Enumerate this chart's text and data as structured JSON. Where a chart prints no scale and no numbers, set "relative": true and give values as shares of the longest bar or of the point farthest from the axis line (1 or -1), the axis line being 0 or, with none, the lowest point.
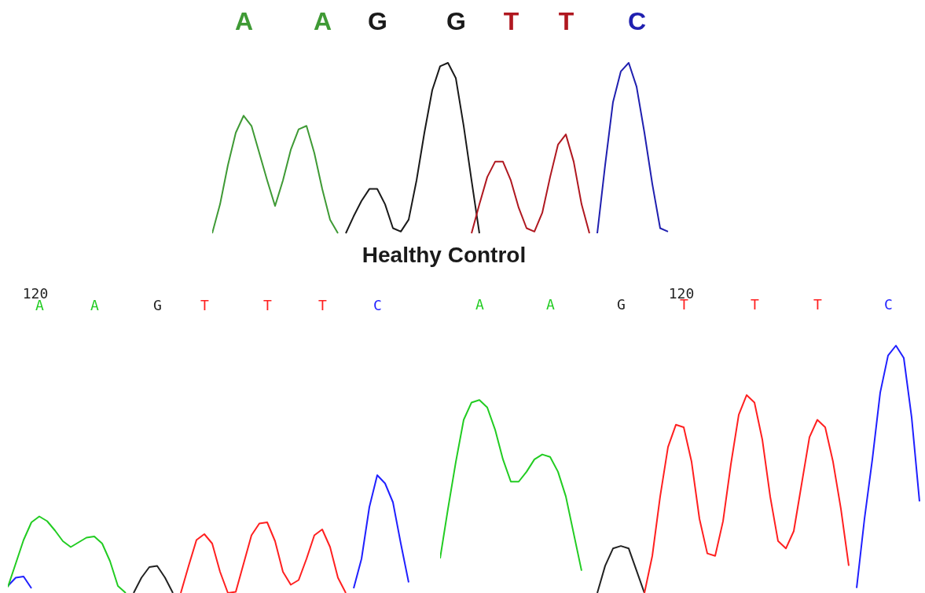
{
  "chart_data": [
    {
      "type": "line",
      "relative": true,
      "xlabel": "Healthy Control",
      "categories": [
        null,
        null,
        null,
        null,
        "A",
        null,
        null,
        null,
        null,
        null,
        null,
        null,
        null,
        null,
        "A",
        null,
        null,
        null,
        null,
        null,
        null,
        "G",
        null,
        null,
        null,
        null,
        null,
        null,
        null,
        null,
        null,
        "G",
        null,
        null,
        null,
        null,
        null,
        null,
        "T",
        null,
        null,
        null,
        null,
        null,
        null,
        "T",
        null,
        null,
        null,
        null,
        null,
        null,
        null,
        null,
        "C",
        null,
        null,
        null,
        null,
        null
      ],
      "series": [
        {
          "color": "#3f9a35",
          "values": [
            0,
            0.17,
            0.4,
            0.59,
            0.69,
            0.63,
            0.47,
            0.31,
            0.16,
            0.31,
            0.49,
            0.61,
            0.63,
            0.47,
            0.26,
            0.08,
            0,
            null,
            null,
            null,
            null,
            null,
            null,
            null,
            null,
            null,
            null,
            null,
            null,
            null,
            null,
            null,
            null,
            null,
            null,
            null,
            null,
            null,
            null,
            null,
            null,
            null,
            null,
            null,
            null,
            null,
            null,
            null,
            null,
            null,
            null,
            null,
            null,
            null,
            null,
            null,
            null,
            null,
            null,
            null
          ]
        },
        {
          "color": "#1a1a1a",
          "values": [
            null,
            null,
            null,
            null,
            null,
            null,
            null,
            null,
            null,
            null,
            null,
            null,
            null,
            null,
            null,
            null,
            null,
            0,
            0.1,
            0.19,
            0.26,
            0.26,
            0.17,
            0.03,
            0.01,
            0.08,
            0.31,
            0.59,
            0.84,
            0.98,
            1,
            0.91,
            0.63,
            0.31,
            0,
            null,
            null,
            null,
            null,
            null,
            null,
            null,
            null,
            null,
            null,
            null,
            null,
            null,
            null,
            null,
            null,
            null,
            null,
            null,
            null,
            null,
            null,
            null,
            null,
            null
          ]
        },
        {
          "color": "#b01820",
          "values": [
            null,
            null,
            null,
            null,
            null,
            null,
            null,
            null,
            null,
            null,
            null,
            null,
            null,
            null,
            null,
            null,
            null,
            null,
            null,
            null,
            null,
            null,
            null,
            null,
            null,
            null,
            null,
            null,
            null,
            null,
            null,
            null,
            null,
            0,
            0.17,
            0.33,
            0.42,
            0.42,
            0.31,
            0.15,
            0.03,
            0.01,
            0.12,
            0.33,
            0.52,
            0.58,
            0.42,
            0.17,
            0,
            null,
            null,
            null,
            null,
            null,
            null,
            null,
            null,
            null,
            null,
            null
          ]
        },
        {
          "color": "#2020b0",
          "values": [
            null,
            null,
            null,
            null,
            null,
            null,
            null,
            null,
            null,
            null,
            null,
            null,
            null,
            null,
            null,
            null,
            null,
            null,
            null,
            null,
            null,
            null,
            null,
            null,
            null,
            null,
            null,
            null,
            null,
            null,
            null,
            null,
            null,
            null,
            null,
            null,
            null,
            null,
            null,
            null,
            null,
            null,
            null,
            null,
            null,
            null,
            null,
            null,
            null,
            0,
            0.4,
            0.77,
            0.95,
            1,
            0.86,
            0.59,
            0.29,
            0.03,
            0.01,
            null
          ]
        }
      ]
    },
    {
      "type": "line",
      "relative": true,
      "annotations": [
        "120"
      ],
      "categories": [
        null,
        null,
        null,
        null,
        "A",
        null,
        null,
        null,
        null,
        null,
        null,
        "A",
        null,
        null,
        null,
        null,
        null,
        null,
        null,
        "G",
        null,
        null,
        null,
        null,
        null,
        "T",
        null,
        null,
        null,
        null,
        null,
        null,
        null,
        "T",
        null,
        null,
        null,
        null,
        null,
        null,
        "T",
        null,
        null,
        null,
        null,
        null,
        null,
        "C",
        null,
        null,
        null,
        null
      ],
      "series": [
        {
          "color": "#2020ff",
          "values": [
            0.06,
            0.13,
            0.14,
            0.04,
            null,
            null,
            null,
            null,
            null,
            null,
            null,
            null,
            null,
            null,
            null,
            null,
            null,
            null,
            null,
            null,
            null,
            null,
            null,
            null,
            null,
            null,
            null,
            null,
            null,
            null,
            null,
            null,
            null,
            null,
            null,
            null,
            null,
            null,
            null,
            null,
            null,
            null,
            null,
            null,
            null,
            null,
            null,
            null,
            null,
            null,
            null,
            null
          ]
        },
        {
          "color": "#22cc22",
          "values": [
            0.05,
            0.25,
            0.45,
            0.6,
            0.65,
            0.61,
            0.53,
            0.44,
            0.39,
            0.43,
            0.47,
            0.48,
            0.42,
            0.27,
            0.06,
            0,
            null,
            null,
            null,
            null,
            null,
            null,
            null,
            null,
            null,
            null,
            null,
            null,
            null,
            null,
            null,
            null,
            null,
            null,
            null,
            null,
            null,
            null,
            null,
            null,
            null,
            null,
            null,
            null,
            null,
            null,
            null,
            null,
            null,
            null,
            null,
            null
          ]
        },
        {
          "color": "#222222",
          "values": [
            null,
            null,
            null,
            null,
            null,
            null,
            null,
            null,
            null,
            null,
            null,
            null,
            null,
            null,
            null,
            null,
            0,
            0.13,
            0.22,
            0.23,
            0.13,
            0,
            null,
            null,
            null,
            null,
            null,
            null,
            null,
            null,
            null,
            null,
            null,
            null,
            null,
            null,
            null,
            null,
            null,
            null,
            null,
            null,
            null,
            null,
            null,
            null,
            null,
            null,
            null,
            null,
            null,
            null
          ]
        },
        {
          "color": "#ff2020",
          "values": [
            null,
            null,
            null,
            null,
            null,
            null,
            null,
            null,
            null,
            null,
            null,
            null,
            null,
            null,
            null,
            null,
            null,
            null,
            null,
            null,
            null,
            null,
            0,
            0.23,
            0.45,
            0.5,
            0.42,
            0.18,
            0,
            0.01,
            0.25,
            0.49,
            0.59,
            0.6,
            0.44,
            0.18,
            0.07,
            0.11,
            0.29,
            0.49,
            0.54,
            0.39,
            0.13,
            0,
            null,
            null,
            null,
            null,
            null,
            null,
            null,
            null
          ]
        },
        {
          "color": "#2020ff",
          "values": [
            null,
            null,
            null,
            null,
            null,
            null,
            null,
            null,
            null,
            null,
            null,
            null,
            null,
            null,
            null,
            null,
            null,
            null,
            null,
            null,
            null,
            null,
            null,
            null,
            null,
            null,
            null,
            null,
            null,
            null,
            null,
            null,
            null,
            null,
            null,
            null,
            null,
            null,
            null,
            null,
            null,
            null,
            null,
            null,
            0.04,
            0.29,
            0.73,
            1,
            0.93,
            0.77,
            0.42,
            0.09
          ]
        }
      ]
    },
    {
      "type": "line",
      "relative": true,
      "annotations": [
        "120"
      ],
      "categories": [
        null,
        null,
        null,
        null,
        null,
        "A",
        null,
        null,
        null,
        null,
        null,
        null,
        null,
        null,
        "A",
        null,
        null,
        null,
        null,
        null,
        null,
        null,
        null,
        "G",
        null,
        null,
        null,
        null,
        null,
        null,
        null,
        "T",
        null,
        null,
        null,
        null,
        null,
        null,
        null,
        null,
        "T",
        null,
        null,
        null,
        null,
        null,
        null,
        null,
        "T",
        null,
        null,
        null,
        null,
        null,
        null,
        null,
        null,
        "C",
        null,
        null,
        null,
        null
      ],
      "series": [
        {
          "color": "#22cc22",
          "values": [
            0.14,
            0.34,
            0.53,
            0.7,
            0.77,
            0.78,
            0.75,
            0.66,
            0.54,
            0.45,
            0.45,
            0.49,
            0.54,
            0.56,
            0.55,
            0.49,
            0.39,
            0.24,
            0.09,
            null,
            null,
            null,
            null,
            null,
            null,
            null,
            null,
            null,
            null,
            null,
            null,
            null,
            null,
            null,
            null,
            null,
            null,
            null,
            null,
            null,
            null,
            null,
            null,
            null,
            null,
            null,
            null,
            null,
            null,
            null,
            null,
            null,
            null,
            null,
            null,
            null,
            null,
            null,
            null,
            null,
            null,
            null
          ]
        },
        {
          "color": "#222222",
          "values": [
            null,
            null,
            null,
            null,
            null,
            null,
            null,
            null,
            null,
            null,
            null,
            null,
            null,
            null,
            null,
            null,
            null,
            null,
            null,
            null,
            0,
            0.11,
            0.18,
            0.19,
            0.18,
            0.09,
            0,
            null,
            null,
            null,
            null,
            null,
            null,
            null,
            null,
            null,
            null,
            null,
            null,
            null,
            null,
            null,
            null,
            null,
            null,
            null,
            null,
            null,
            null,
            null,
            null,
            null,
            null,
            null,
            null,
            null,
            null,
            null,
            null,
            null,
            null,
            null
          ]
        },
        {
          "color": "#ff2020",
          "values": [
            null,
            null,
            null,
            null,
            null,
            null,
            null,
            null,
            null,
            null,
            null,
            null,
            null,
            null,
            null,
            null,
            null,
            null,
            null,
            null,
            null,
            null,
            null,
            null,
            null,
            null,
            0,
            0.15,
            0.39,
            0.59,
            0.68,
            0.67,
            0.53,
            0.3,
            0.16,
            0.15,
            0.29,
            0.52,
            0.72,
            0.8,
            0.77,
            0.62,
            0.39,
            0.21,
            0.18,
            0.25,
            0.44,
            0.63,
            0.7,
            0.67,
            0.53,
            0.34,
            0.11,
            null,
            null,
            null,
            null,
            null,
            null,
            null,
            null,
            null
          ]
        },
        {
          "color": "#2020ff",
          "values": [
            null,
            null,
            null,
            null,
            null,
            null,
            null,
            null,
            null,
            null,
            null,
            null,
            null,
            null,
            null,
            null,
            null,
            null,
            null,
            null,
            null,
            null,
            null,
            null,
            null,
            null,
            null,
            null,
            null,
            null,
            null,
            null,
            null,
            null,
            null,
            null,
            null,
            null,
            null,
            null,
            null,
            null,
            null,
            null,
            null,
            null,
            null,
            null,
            null,
            null,
            null,
            null,
            null,
            0.02,
            0.3,
            0.54,
            0.81,
            0.96,
            1,
            0.95,
            0.71,
            0.37
          ]
        }
      ]
    }
  ]
}
